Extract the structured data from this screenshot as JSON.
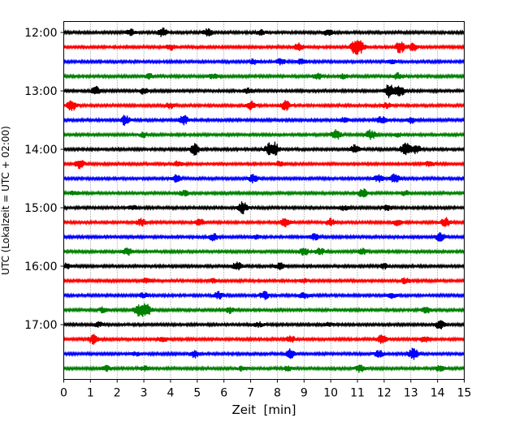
{
  "chart_data": {
    "type": "line",
    "title": "",
    "xlabel": "Zeit  [min]",
    "ylabel": "UTC (Lokalzeit = UTC + 02:00)",
    "xlim": [
      0,
      15
    ],
    "x_ticks": [
      "0",
      "1",
      "2",
      "3",
      "4",
      "5",
      "6",
      "7",
      "8",
      "9",
      "10",
      "11",
      "12",
      "13",
      "14",
      "15"
    ],
    "y_ticks": [
      "12:00",
      "13:00",
      "14:00",
      "15:00",
      "16:00",
      "17:00"
    ],
    "grid": "vertical-dotted",
    "trace_interval_min": 15,
    "trace_count": 24,
    "colors": [
      "#000000",
      "#ff0000",
      "#0000ff",
      "#008000"
    ],
    "series": [
      {
        "values": [
          [
            2.5,
            0.5
          ],
          [
            3.7,
            0.7
          ],
          [
            5.4,
            0.6
          ],
          [
            7.4,
            0.4
          ],
          [
            9.9,
            0.5
          ]
        ]
      },
      {
        "values": [
          [
            4.0,
            0.5
          ],
          [
            8.8,
            0.6
          ],
          [
            10.9,
            1.0
          ],
          [
            11.1,
            0.9
          ],
          [
            12.6,
            1.0
          ],
          [
            13.1,
            0.6
          ]
        ]
      },
      {
        "values": [
          [
            7.1,
            0.4
          ],
          [
            8.1,
            0.6
          ],
          [
            8.9,
            0.4
          ],
          [
            12.3,
            0.3
          ]
        ]
      },
      {
        "values": [
          [
            3.2,
            0.4
          ],
          [
            5.6,
            0.4
          ],
          [
            9.5,
            0.5
          ],
          [
            10.5,
            0.4
          ],
          [
            12.5,
            0.5
          ]
        ]
      },
      {
        "values": [
          [
            1.2,
            0.8
          ],
          [
            3.0,
            0.5
          ],
          [
            6.9,
            0.4
          ],
          [
            12.2,
            1.2
          ],
          [
            12.6,
            0.9
          ]
        ]
      },
      {
        "values": [
          [
            0.3,
            0.9
          ],
          [
            4.0,
            0.5
          ],
          [
            7.0,
            0.8
          ],
          [
            8.3,
            0.8
          ],
          [
            12.1,
            0.4
          ]
        ]
      },
      {
        "values": [
          [
            2.3,
            0.9
          ],
          [
            4.5,
            0.8
          ],
          [
            10.5,
            0.4
          ],
          [
            11.9,
            0.6
          ],
          [
            13.0,
            0.5
          ]
        ]
      },
      {
        "values": [
          [
            3.0,
            0.4
          ],
          [
            10.2,
            0.8
          ],
          [
            11.5,
            0.8
          ],
          [
            12.5,
            0.3
          ]
        ]
      },
      {
        "values": [
          [
            4.9,
            0.9
          ],
          [
            7.7,
            0.8
          ],
          [
            7.9,
            1.0
          ],
          [
            10.9,
            0.7
          ],
          [
            12.8,
            1.1
          ],
          [
            13.2,
            0.7
          ]
        ]
      },
      {
        "values": [
          [
            0.6,
            0.7
          ],
          [
            4.3,
            0.5
          ],
          [
            8.1,
            0.4
          ],
          [
            13.7,
            0.4
          ]
        ]
      },
      {
        "values": [
          [
            4.2,
            0.6
          ],
          [
            7.1,
            0.7
          ],
          [
            11.8,
            0.6
          ],
          [
            12.4,
            0.7
          ]
        ]
      },
      {
        "values": [
          [
            0.4,
            0.3
          ],
          [
            4.5,
            0.5
          ],
          [
            11.2,
            0.7
          ],
          [
            12.8,
            0.4
          ]
        ]
      },
      {
        "values": [
          [
            2.6,
            0.4
          ],
          [
            6.7,
            1.0
          ],
          [
            10.5,
            0.4
          ],
          [
            12.1,
            0.4
          ]
        ]
      },
      {
        "values": [
          [
            2.9,
            0.6
          ],
          [
            5.1,
            0.5
          ],
          [
            8.3,
            0.7
          ],
          [
            10.0,
            0.6
          ],
          [
            12.5,
            0.5
          ],
          [
            14.3,
            0.8
          ]
        ]
      },
      {
        "values": [
          [
            5.6,
            0.6
          ],
          [
            7.2,
            0.3
          ],
          [
            9.4,
            0.5
          ],
          [
            14.1,
            0.7
          ]
        ]
      },
      {
        "values": [
          [
            2.4,
            0.7
          ],
          [
            9.0,
            0.6
          ],
          [
            9.6,
            0.6
          ],
          [
            11.2,
            0.5
          ]
        ]
      },
      {
        "values": [
          [
            0.1,
            0.5
          ],
          [
            6.5,
            0.8
          ],
          [
            8.1,
            0.5
          ],
          [
            12.0,
            0.4
          ]
        ]
      },
      {
        "values": [
          [
            3.1,
            0.4
          ],
          [
            5.6,
            0.3
          ],
          [
            9.0,
            0.3
          ],
          [
            12.8,
            0.5
          ]
        ]
      },
      {
        "values": [
          [
            3.0,
            0.4
          ],
          [
            5.8,
            0.6
          ],
          [
            7.5,
            0.7
          ],
          [
            9.0,
            0.6
          ],
          [
            12.3,
            0.4
          ]
        ]
      },
      {
        "values": [
          [
            1.5,
            0.5
          ],
          [
            2.8,
            1.0
          ],
          [
            3.1,
            1.2
          ],
          [
            6.2,
            0.5
          ],
          [
            13.6,
            0.5
          ]
        ]
      },
      {
        "values": [
          [
            1.3,
            0.4
          ],
          [
            7.3,
            0.4
          ],
          [
            9.9,
            0.3
          ],
          [
            14.1,
            0.8
          ]
        ]
      },
      {
        "values": [
          [
            1.1,
            0.8
          ],
          [
            3.7,
            0.4
          ],
          [
            8.5,
            0.6
          ],
          [
            11.9,
            0.8
          ],
          [
            13.5,
            0.5
          ]
        ]
      },
      {
        "values": [
          [
            2.7,
            0.3
          ],
          [
            4.9,
            0.6
          ],
          [
            8.5,
            0.8
          ],
          [
            11.8,
            0.6
          ],
          [
            13.1,
            1.0
          ]
        ]
      },
      {
        "values": [
          [
            1.6,
            0.5
          ],
          [
            3.0,
            0.4
          ],
          [
            6.7,
            0.4
          ],
          [
            8.4,
            0.4
          ],
          [
            11.1,
            0.6
          ],
          [
            14.1,
            0.5
          ]
        ]
      }
    ]
  }
}
